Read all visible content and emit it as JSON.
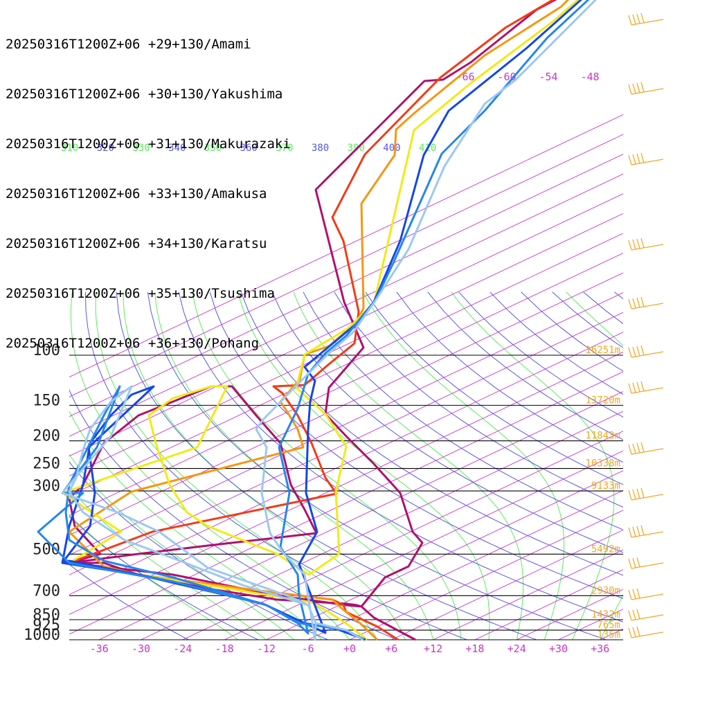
{
  "chart_data": {
    "type": "line",
    "diagram": "skew-T log-p",
    "pressure_levels": [
      100,
      150,
      200,
      250,
      300,
      500,
      700,
      850,
      925,
      1000
    ],
    "level_heights": [
      {
        "p": 100,
        "label": "16251m"
      },
      {
        "p": 150,
        "label": "13720m"
      },
      {
        "p": 200,
        "label": "11843m"
      },
      {
        "p": 250,
        "label": "10338m"
      },
      {
        "p": 300,
        "label": "9133m"
      },
      {
        "p": 500,
        "label": "5492m"
      },
      {
        "p": 700,
        "label": "2930m"
      },
      {
        "p": 850,
        "label": "1432m"
      },
      {
        "p": 925,
        "label": "765m"
      },
      {
        "p": 1000,
        "label": "135m"
      }
    ],
    "x_ticks": [
      -36,
      -30,
      -24,
      -18,
      -12,
      -6,
      0,
      6,
      12,
      18,
      24,
      30,
      36
    ],
    "x_tick_labels": [
      "-36",
      "-30",
      "-24",
      "-18",
      "-12",
      "-6",
      "+0",
      "+6",
      "+12",
      "+18",
      "+24",
      "+30",
      "+36"
    ],
    "upper_temp_labels": [
      "-66",
      "-60",
      "-54",
      "-48"
    ],
    "theta_labels": [
      "310",
      "320",
      "330",
      "340",
      "350",
      "360",
      "370",
      "380",
      "390",
      "400",
      "410"
    ],
    "series": [
      {
        "name": "20250316T1200Z+06 +29+130/Amami",
        "color": "#b0106e"
      },
      {
        "name": "20250316T1200Z+06 +30+130/Yakushima",
        "color": "#f53a16"
      },
      {
        "name": "20250316T1200Z+06 +31+130/Makurazaki",
        "color": "#f7960f"
      },
      {
        "name": "20250316T1200Z+06 +33+130/Amakusa",
        "color": "#f2ea14"
      },
      {
        "name": "20250316T1200Z+06 +34+130/Karatsu",
        "color": "#1446e6"
      },
      {
        "name": "20250316T1200Z+06 +35+130/Tsushima",
        "color": "#2486ee"
      },
      {
        "name": "20250316T1200Z+06 +36+130/Pohang",
        "color": "#9cc8f2"
      }
    ],
    "colors": {
      "isotherm": "#cc33cc",
      "dry_adiabat": "#5555ee",
      "moist_adiabat": "#55ee55",
      "height_label": "#f5a623",
      "wind_barb": "#f5a623",
      "pressure_line": "#000000",
      "pressure_label": "#222222",
      "x_tick_label": "#cc33cc"
    }
  }
}
